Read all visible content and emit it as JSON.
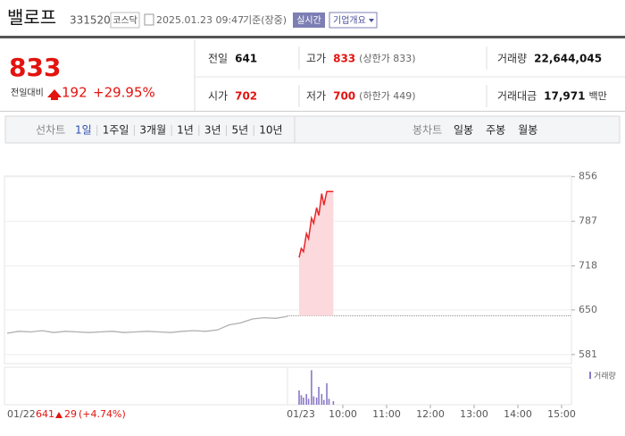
{
  "header": {
    "name": "밸로프",
    "code": "331520",
    "market": "코스닥",
    "datetime": "2025.01.23 09:47",
    "basis": "기준(장중)",
    "realtime": "실시간",
    "overview": "기업개요"
  },
  "price": {
    "current": "833",
    "change_label": "전일대비",
    "change": "192",
    "change_pct": "+29.95%"
  },
  "summary": [
    {
      "label": "전일",
      "value": "641"
    },
    {
      "label": "고가",
      "value": "833",
      "note": "(상한가 833)",
      "color": "#e3130f"
    },
    {
      "label": "거래량",
      "value": "22,644,045"
    },
    {
      "label": "시가",
      "value": "702",
      "color": "#e3130f"
    },
    {
      "label": "저가",
      "value": "700",
      "note": "(하한가 449)",
      "color": "#e3130f"
    },
    {
      "label": "거래대금",
      "value": "17,971",
      "unit": "백만"
    }
  ],
  "tabs": {
    "line_label": "선차트",
    "line_tabs": [
      "1일",
      "1주일",
      "3개월",
      "1년",
      "3년",
      "5년",
      "10년"
    ],
    "active": 0,
    "candle_label": "봉차트",
    "candle_tabs": [
      "일봉",
      "주봉",
      "월봉"
    ]
  },
  "chart_data": {
    "type": "line",
    "ylim": [
      567,
      857
    ],
    "yticks": [
      581,
      650,
      718,
      787,
      856
    ],
    "grid": true,
    "prev_close": 641,
    "previous_day": {
      "color": "#b0b0b0",
      "values": [
        614,
        617,
        616,
        618,
        615,
        617,
        616,
        615,
        616,
        617,
        615,
        616,
        617,
        616,
        615,
        617,
        618,
        617,
        619,
        627,
        630,
        636,
        638,
        637,
        640
      ]
    },
    "today_label": "01/23",
    "xticks": [
      "10:00",
      "11:00",
      "12:00",
      "13:00",
      "14:00",
      "15:00"
    ],
    "series": [
      {
        "color": "#e8262a",
        "fill": "#fbd9dc",
        "x": [
          "09:00",
          "09:03",
          "09:06",
          "09:10",
          "09:13",
          "09:17",
          "09:20",
          "09:24",
          "09:27",
          "09:31",
          "09:34",
          "09:38",
          "09:41",
          "09:47"
        ],
        "values": [
          731,
          745,
          740,
          768,
          760,
          792,
          784,
          808,
          796,
          830,
          812,
          833,
          833,
          833
        ]
      }
    ],
    "volume": {
      "name": "거래량",
      "color": "#8a78c8",
      "ylim": [
        0,
        3000000
      ],
      "values": [
        1200000,
        800000,
        600000,
        900000,
        500000,
        2900000,
        700000,
        600000,
        1500000,
        900000,
        400000,
        1800000,
        500000,
        300000
      ]
    }
  },
  "footer": {
    "prev_date": "01/22",
    "prev_close": "641",
    "change": "29",
    "change_pct": "(+4.74%)"
  }
}
